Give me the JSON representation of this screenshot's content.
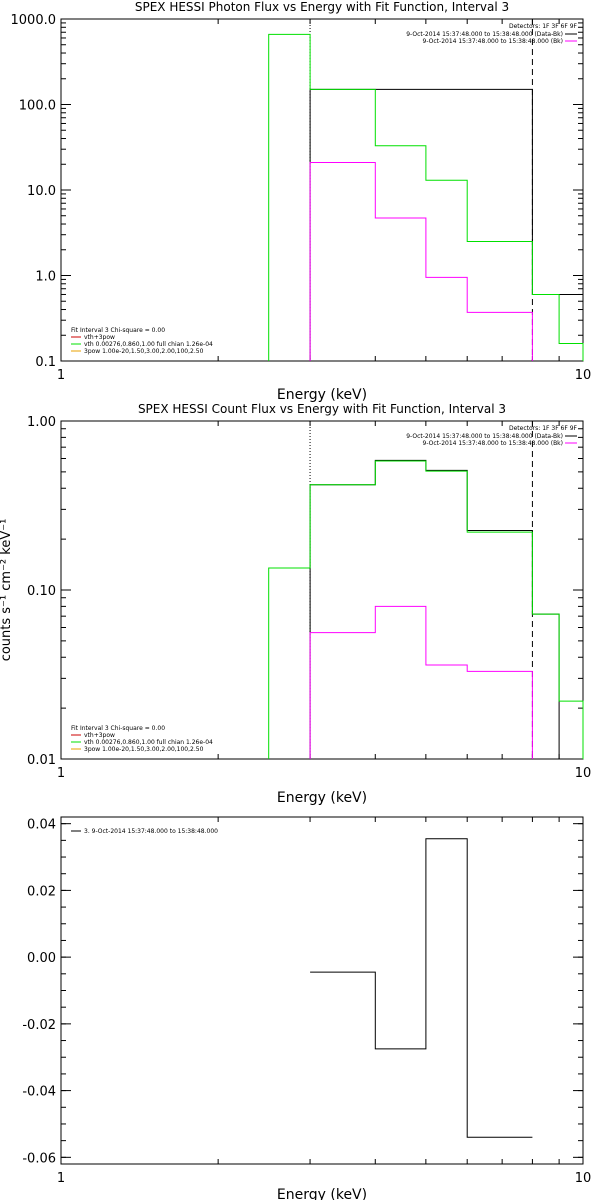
{
  "chart_data": [
    {
      "type": "line",
      "title": "SPEX HESSI Photon Flux vs Energy with Fit Function, Interval 3",
      "xlabel": "Energy (keV)",
      "ylabel": "",
      "xscale": "log",
      "yscale": "log",
      "xlim": [
        1,
        10
      ],
      "ylim": [
        0.1,
        1000
      ],
      "xticks": [
        {
          "value": 1,
          "label": "1"
        },
        {
          "value": 10,
          "label": "10"
        }
      ],
      "yticks": [
        {
          "value": 0.1,
          "label": "0.1"
        },
        {
          "value": 1,
          "label": "1.0"
        },
        {
          "value": 10,
          "label": "10.0"
        },
        {
          "value": 100,
          "label": "100.0"
        },
        {
          "value": 1000,
          "label": "1000.0"
        }
      ],
      "vlines": [
        {
          "x": 3,
          "style": "dotted"
        },
        {
          "x": 8,
          "style": "dashed"
        }
      ],
      "legend_right": {
        "position": "top-right",
        "header": "Detectors: 1F 3F 6F 9F",
        "entries": [
          {
            "text": "9-Oct-2014 15:37:48.000 to 15:38:48.000 (Data-Bk)",
            "color": "#000000"
          },
          {
            "text": "9-Oct-2014 15:37:48.000 to 15:38:48.000 (Bk)",
            "color": "#ff00ff"
          }
        ]
      },
      "legend_left": {
        "position": "bottom-left",
        "header": "Fit Interval 3   Chi-square = 0.00",
        "entries": [
          {
            "text": "vth+3pow",
            "color": "#cc0000"
          },
          {
            "text": "vth 0.00276,0.860,1.00   full chian 1.26e-04",
            "color": "#00e000"
          },
          {
            "text": "3pow 1.00e-20,1.50,3.00,2.00,100,2.50",
            "color": "#e8a000"
          }
        ]
      },
      "series": [
        {
          "color": "#000000",
          "values": [
            [
              3,
              8,
              150
            ],
            [
              8,
              10,
              0.6
            ]
          ]
        },
        {
          "color": "#00e000",
          "values": [
            [
              2.5,
              3,
              660
            ],
            [
              3,
              4,
              150
            ],
            [
              4,
              5,
              33
            ],
            [
              5,
              6,
              13
            ],
            [
              6,
              8,
              2.5
            ],
            [
              8,
              9,
              0.6
            ],
            [
              9,
              10,
              0.16
            ]
          ]
        },
        {
          "color": "#ff00ff",
          "values": [
            [
              3,
              4,
              21
            ],
            [
              4,
              5,
              4.7
            ],
            [
              5,
              6,
              0.95
            ],
            [
              6,
              8,
              0.37
            ]
          ]
        }
      ]
    },
    {
      "type": "line",
      "title": "SPEX HESSI Count Flux vs Energy with Fit Function, Interval 3",
      "xlabel": "Energy (keV)",
      "ylabel": "counts s⁻¹ cm⁻² keV⁻¹",
      "xscale": "log",
      "yscale": "log",
      "xlim": [
        1,
        10
      ],
      "ylim": [
        0.01,
        1
      ],
      "xticks": [
        {
          "value": 1,
          "label": "1"
        },
        {
          "value": 10,
          "label": "10"
        }
      ],
      "yticks": [
        {
          "value": 0.01,
          "label": "0.01"
        },
        {
          "value": 0.1,
          "label": "0.10"
        },
        {
          "value": 1,
          "label": "1.00"
        }
      ],
      "vlines": [
        {
          "x": 3,
          "style": "dotted"
        },
        {
          "x": 8,
          "style": "dashed"
        }
      ],
      "legend_right": {
        "position": "top-right",
        "header": "Detectors: 1F 3F 6F 9F",
        "entries": [
          {
            "text": "9-Oct-2014 15:37:48.000 to 15:38:48.000 (Data-Bk)",
            "color": "#000000"
          },
          {
            "text": "9-Oct-2014 15:37:48.000 to 15:38:48.000 (Bk)",
            "color": "#ff00ff"
          }
        ]
      },
      "legend_left": {
        "position": "bottom-left",
        "header": "Fit Interval 3   Chi-square = 0.00",
        "entries": [
          {
            "text": "vth+3pow",
            "color": "#cc0000"
          },
          {
            "text": "vth 0.00276,0.860,1.00   full chian 1.26e-04",
            "color": "#00e000"
          },
          {
            "text": "3pow 1.00e-20,1.50,3.00,2.00,100,2.50",
            "color": "#e8a000"
          }
        ]
      },
      "series": [
        {
          "color": "#000000",
          "values": [
            [
              3,
              4,
              0.42
            ],
            [
              4,
              5,
              0.585
            ],
            [
              5,
              6,
              0.51
            ],
            [
              6,
              8,
              0.225
            ],
            [
              8,
              9,
              0.072
            ]
          ]
        },
        {
          "color": "#00e000",
          "values": [
            [
              2.5,
              3,
              0.135
            ],
            [
              3,
              4,
              0.42
            ],
            [
              4,
              5,
              0.58
            ],
            [
              5,
              6,
              0.505
            ],
            [
              6,
              8,
              0.22
            ],
            [
              8,
              9,
              0.072
            ],
            [
              9,
              10,
              0.022
            ]
          ]
        },
        {
          "color": "#ff00ff",
          "values": [
            [
              3,
              4,
              0.056
            ],
            [
              4,
              5,
              0.08
            ],
            [
              5,
              6,
              0.036
            ],
            [
              6,
              8,
              0.033
            ]
          ]
        }
      ]
    },
    {
      "type": "line",
      "title": "",
      "xlabel": "Energy (keV)",
      "ylabel": "",
      "xscale": "log",
      "yscale": "linear",
      "xlim": [
        1,
        10
      ],
      "ylim": [
        -0.062,
        0.042
      ],
      "xticks": [
        {
          "value": 1,
          "label": "1"
        },
        {
          "value": 10,
          "label": "10"
        }
      ],
      "yticks": [
        {
          "value": -0.06,
          "label": "-0.06"
        },
        {
          "value": -0.04,
          "label": "-0.04"
        },
        {
          "value": -0.02,
          "label": "-0.02"
        },
        {
          "value": 0,
          "label": "0.00"
        },
        {
          "value": 0.02,
          "label": "0.02"
        },
        {
          "value": 0.04,
          "label": "0.04"
        }
      ],
      "vlines": [],
      "legend_right": null,
      "legend_left": {
        "position": "top-left",
        "header": "",
        "entries": [
          {
            "text": "3.  9-Oct-2014 15:37:48.000 to 15:38:48.000",
            "color": "#000000"
          }
        ]
      },
      "series": [
        {
          "color": "#000000",
          "values": [
            [
              3,
              4,
              -0.0045
            ],
            [
              4,
              5,
              -0.0275
            ],
            [
              5,
              6,
              0.0355
            ],
            [
              6,
              8,
              -0.054
            ]
          ]
        }
      ]
    }
  ]
}
